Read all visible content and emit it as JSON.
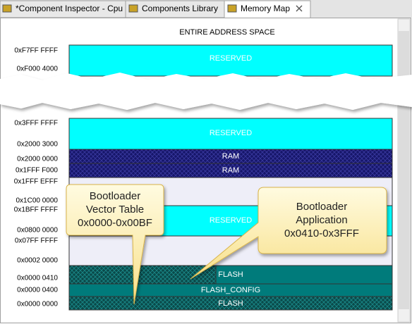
{
  "tabs": [
    {
      "label": "*Component Inspector - Cpu"
    },
    {
      "label": "Components Library"
    },
    {
      "label": "Memory Map"
    }
  ],
  "memory_map": {
    "title": "ENTIRE ADDRESS SPACE",
    "addresses": [
      "0xF7FF FFFF",
      "0xF000 4000",
      "0x3FFF FFFF",
      "0x2000 3000",
      "0x2000 0000",
      "0x1FFF F000",
      "0x1FFF EFFF",
      "0x1C00 0000",
      "0x1BFF FFFF",
      "0x0800 0000",
      "0x07FF FFFF",
      "0x0002 0000",
      "0x0000 0410",
      "0x0000 0400",
      "0x0000 0000"
    ],
    "blocks": [
      {
        "label": "RESERVED"
      },
      {
        "label": "RESERVED"
      },
      {
        "label": "RAM"
      },
      {
        "label": "RAM"
      },
      {
        "label": "RESERVED"
      },
      {
        "label": "FLASH"
      },
      {
        "label": "FLASH_CONFIG"
      },
      {
        "label": "FLASH"
      }
    ]
  },
  "callouts": [
    {
      "lines": [
        "Bootloader",
        "Vector Table",
        "0x0000-0x00BF"
      ]
    },
    {
      "lines": [
        "Bootloader",
        "Application",
        "0x0410-0x3FFF"
      ]
    }
  ]
}
